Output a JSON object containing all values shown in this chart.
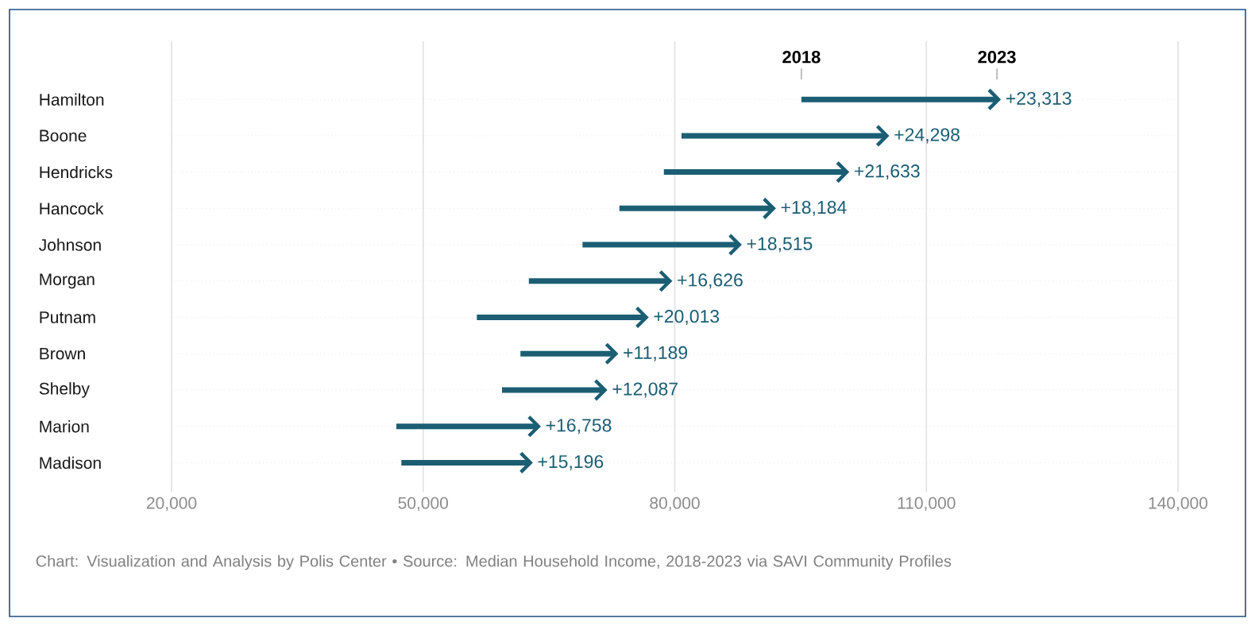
{
  "chart_data": {
    "type": "bar",
    "orientation": "horizontal",
    "categories": [
      "Hamilton",
      "Boone",
      "Hendricks",
      "Hancock",
      "Johnson",
      "Morgan",
      "Putnam",
      "Brown",
      "Shelby",
      "Marion",
      "Madison"
    ],
    "base": [
      95100,
      80800,
      78700,
      73400,
      69000,
      62600,
      56400,
      61600,
      59400,
      46800,
      47400
    ],
    "values": [
      23313,
      24298,
      21633,
      18184,
      18515,
      16626,
      20013,
      11189,
      12087,
      16758,
      15196
    ],
    "value_labels": [
      "+23,313",
      "+24,298",
      "+21,633",
      "+18,184",
      "+18,515",
      "+16,626",
      "+20,013",
      "+11,189",
      "+12,087",
      "+16,758",
      "+15,196"
    ],
    "color": "#1b5e74",
    "xlim": [
      20000,
      140000
    ],
    "xticks": [
      {
        "value": 20000,
        "label": "20,000"
      },
      {
        "value": 50000,
        "label": "50,000"
      },
      {
        "value": 80000,
        "label": "80,000"
      },
      {
        "value": 110000,
        "label": "110,000"
      },
      {
        "value": 140000,
        "label": "140,000"
      }
    ],
    "grid": true,
    "annotations": [
      "2018",
      "2023",
      "Chart: Visualization and Analysis by Polis Center • Source: Median Household Income, 2018-2023 via SAVI Community Profiles"
    ]
  }
}
